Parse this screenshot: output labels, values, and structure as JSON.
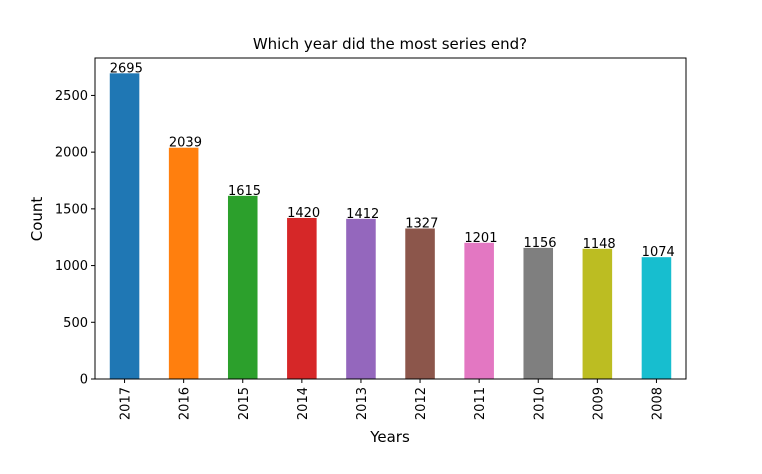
{
  "chart_data": {
    "type": "bar",
    "title": "Which year did the most series end?",
    "xlabel": "Years",
    "ylabel": "Count",
    "categories": [
      "2017",
      "2016",
      "2015",
      "2014",
      "2013",
      "2012",
      "2011",
      "2010",
      "2009",
      "2008"
    ],
    "values": [
      2695,
      2039,
      1615,
      1420,
      1412,
      1327,
      1201,
      1156,
      1148,
      1074
    ],
    "colors": [
      "#1f77b4",
      "#ff7f0e",
      "#2ca02c",
      "#d62728",
      "#9467bd",
      "#8c564b",
      "#e377c2",
      "#7f7f7f",
      "#bcbd22",
      "#17becf"
    ],
    "ylim": [
      0,
      2830
    ],
    "yticks": [
      0,
      500,
      1000,
      1500,
      2000,
      2500
    ],
    "grid": false,
    "legend": "none"
  }
}
